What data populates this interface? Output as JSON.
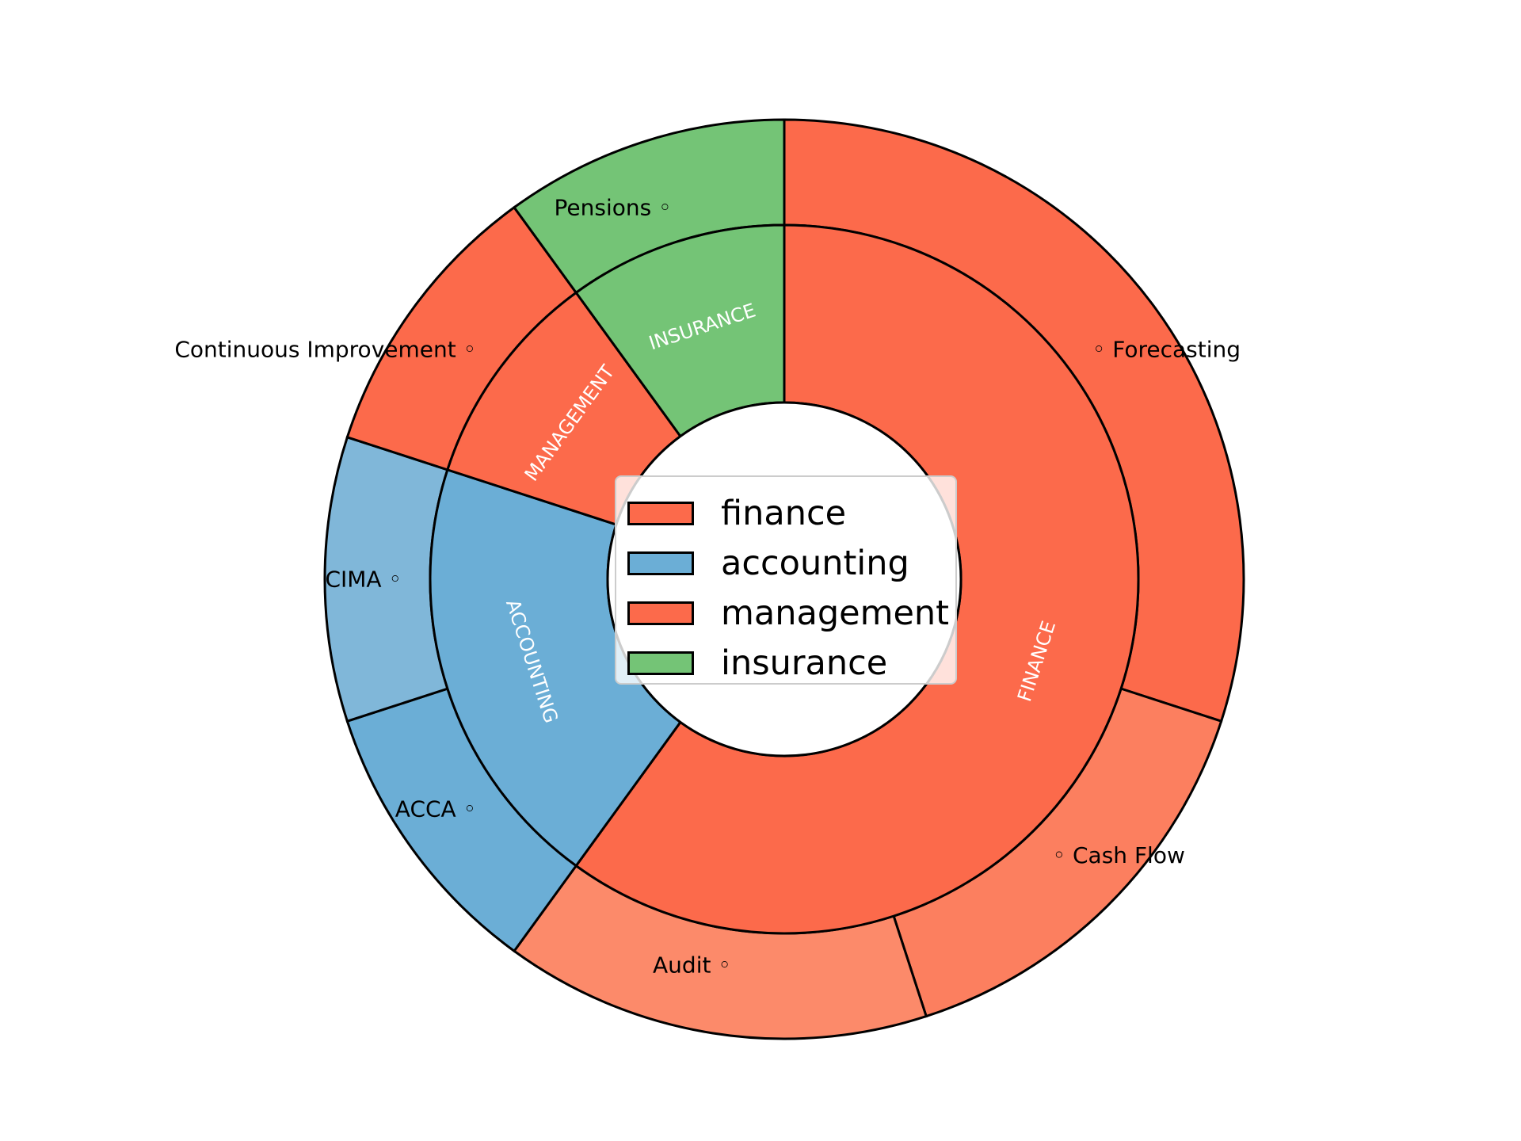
{
  "chart_data": {
    "type": "pie",
    "subtype": "nested-donut",
    "title": "",
    "inner_ring": [
      {
        "label": "FINANCE",
        "value": 0.6
      },
      {
        "label": "ACCOUNTING",
        "value": 0.2
      },
      {
        "label": "MANAGEMENT",
        "value": 0.1
      },
      {
        "label": "INSURANCE",
        "value": 0.1
      }
    ],
    "outer_ring": [
      {
        "label": "Forecasting",
        "group": "finance",
        "value": 0.3
      },
      {
        "label": "Cash Flow",
        "group": "finance",
        "value": 0.15
      },
      {
        "label": "Audit",
        "group": "finance",
        "value": 0.15
      },
      {
        "label": "ACCA",
        "group": "accounting",
        "value": 0.1
      },
      {
        "label": "CIMA",
        "group": "accounting",
        "value": 0.1
      },
      {
        "label": "Continuous Improvement",
        "group": "management",
        "value": 0.1
      },
      {
        "label": "Pensions",
        "group": "insurance",
        "value": 0.1
      }
    ],
    "legend": {
      "placement": "center",
      "entries": [
        {
          "label": "finance",
          "color": "#fc6a4b"
        },
        {
          "label": "accounting",
          "color": "#6baed6"
        },
        {
          "label": "management",
          "color": "#fc6a4b"
        },
        {
          "label": "insurance",
          "color": "#74c476"
        }
      ]
    },
    "colors": {
      "inner": [
        "#fc6a4b",
        "#6baed6",
        "#fc6a4b",
        "#74c476"
      ],
      "outer": [
        "#fc6a4b",
        "#fc7f5f",
        "#fc8a6a",
        "#6baed6",
        "#80b7d9",
        "#fc6a4b",
        "#74c476"
      ],
      "edge": "#000000",
      "inner_label": "#ffffff",
      "outer_label": "#000000"
    },
    "outer_label_marker": "◦"
  }
}
